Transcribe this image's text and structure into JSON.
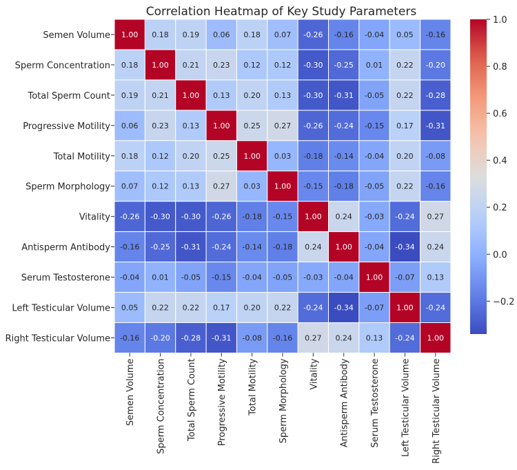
{
  "chart_data": {
    "type": "heatmap",
    "title": "Correlation Heatmap of Key Study Parameters",
    "xlabel": "",
    "ylabel": "",
    "labels": [
      "Semen Volume",
      "Sperm Concentration",
      "Total Sperm Count",
      "Progressive Motility",
      "Total Motility",
      "Sperm Morphology",
      "Vitality",
      "Antisperm Antibody",
      "Serum Testosterone",
      "Left Testicular Volume",
      "Right Testicular Volume"
    ],
    "matrix": [
      [
        1.0,
        0.18,
        0.19,
        0.06,
        0.18,
        0.07,
        -0.26,
        -0.16,
        -0.04,
        0.05,
        -0.16
      ],
      [
        0.18,
        1.0,
        0.21,
        0.23,
        0.12,
        0.12,
        -0.3,
        -0.25,
        0.01,
        0.22,
        -0.2
      ],
      [
        0.19,
        0.21,
        1.0,
        0.13,
        0.2,
        0.13,
        -0.3,
        -0.31,
        -0.05,
        0.22,
        -0.28
      ],
      [
        0.06,
        0.23,
        0.13,
        1.0,
        0.25,
        0.27,
        -0.26,
        -0.24,
        -0.15,
        0.17,
        -0.31
      ],
      [
        0.18,
        0.12,
        0.2,
        0.25,
        1.0,
        0.03,
        -0.18,
        -0.14,
        -0.04,
        0.2,
        -0.08
      ],
      [
        0.07,
        0.12,
        0.13,
        0.27,
        0.03,
        1.0,
        -0.15,
        -0.18,
        -0.05,
        0.22,
        -0.16
      ],
      [
        -0.26,
        -0.3,
        -0.3,
        -0.26,
        -0.18,
        -0.15,
        1.0,
        0.24,
        -0.03,
        -0.24,
        0.27
      ],
      [
        -0.16,
        -0.25,
        -0.31,
        -0.24,
        -0.14,
        -0.18,
        0.24,
        1.0,
        -0.04,
        -0.34,
        0.24
      ],
      [
        -0.04,
        0.01,
        -0.05,
        -0.15,
        -0.04,
        -0.05,
        -0.03,
        -0.04,
        1.0,
        -0.07,
        0.13
      ],
      [
        0.05,
        0.22,
        0.22,
        0.17,
        0.2,
        0.22,
        -0.24,
        -0.34,
        -0.07,
        1.0,
        -0.24
      ],
      [
        -0.16,
        -0.2,
        -0.28,
        -0.31,
        -0.08,
        -0.16,
        0.27,
        0.24,
        0.13,
        -0.24,
        1.0
      ]
    ],
    "color_range": [
      -0.34,
      1.0
    ],
    "colorbar_ticks": [
      1.0,
      0.8,
      0.6,
      0.4,
      0.2,
      0.0,
      -0.2
    ],
    "colorbar_tick_labels": [
      "1.0",
      "0.8",
      "0.6",
      "0.4",
      "0.2",
      "0.0",
      "−0.2"
    ],
    "colormap": "coolwarm",
    "annotate": true,
    "value_format": "0.00"
  }
}
